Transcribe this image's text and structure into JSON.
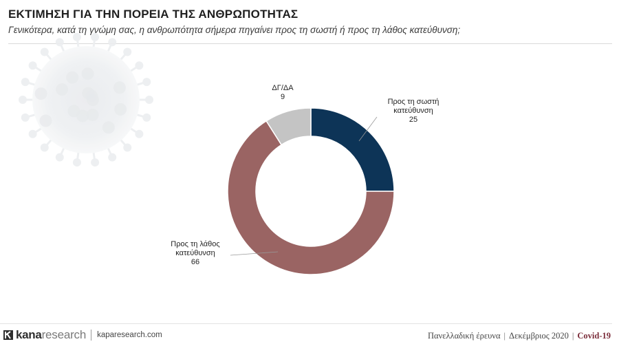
{
  "header": {
    "title": "ΕΚΤΙΜΗΣΗ ΓΙΑ ΤΗΝ ΠΟΡΕΙΑ ΤΗΣ ΑΝΘΡΩΠΟΤΗΤΑΣ",
    "subtitle": "Γενικότερα, κατά τη γνώμη σας, η ανθρωπότητα σήμερα πηγαίνει προς τη σωστή ή προς τη λάθος κατεύθυνση;"
  },
  "chart_data": {
    "type": "pie",
    "variant": "donut",
    "title": "",
    "slices": [
      {
        "label_lines": [
          "Προς τη σωστή",
          "κατεύθυνση"
        ],
        "value": 25,
        "value_label": "25",
        "color": "#0d3457"
      },
      {
        "label_lines": [
          "Προς τη λάθος",
          "κατεύθυνση"
        ],
        "value": 66,
        "value_label": "66",
        "color": "#9a6463"
      },
      {
        "label_lines": [
          "ΔΓ/ΔΑ"
        ],
        "value": 9,
        "value_label": "9",
        "color": "#c4c4c4"
      }
    ],
    "legend": "none"
  },
  "footer": {
    "brand_kana": "kana",
    "brand_research": "research",
    "site": "kaparesearch.com",
    "survey": "Πανελλαδική έρευνα",
    "date": "Δεκέμβριος 2020",
    "tag": "Covid-19"
  }
}
